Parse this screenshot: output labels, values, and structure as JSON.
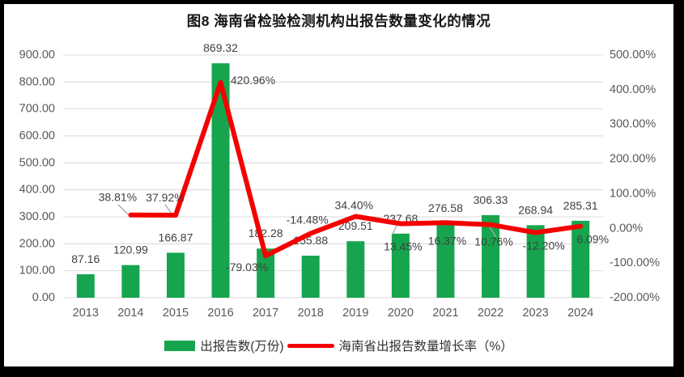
{
  "title": "图8 海南省检验检测机构出报告数量变化的情况",
  "colors": {
    "bar": "#16A54E",
    "line": "#F40000",
    "grid": "#D9D9D9",
    "axis_text": "#595959",
    "data_label_text": "#3F3F3F",
    "leader": "#A6A6A6",
    "frame": "#000000",
    "background": "#FFFFFF"
  },
  "legend": [
    {
      "label": "出报告数(万份)",
      "marker": "bar-swatch",
      "color": "#16A54E"
    },
    {
      "label": "海南省出报告数量增长率（%）",
      "marker": "line-swatch",
      "color": "#F40000"
    }
  ],
  "chart_data": {
    "type": "combo",
    "title": "图8 海南省检验检测机构出报告数量变化的情况",
    "categories": [
      "2013",
      "2014",
      "2015",
      "2016",
      "2017",
      "2018",
      "2019",
      "2020",
      "2021",
      "2022",
      "2023",
      "2024"
    ],
    "series": [
      {
        "name": "出报告数(万份)",
        "type": "bar",
        "axis": "left",
        "color": "#16A54E",
        "values": [
          87.16,
          120.99,
          166.87,
          869.32,
          182.28,
          155.88,
          209.51,
          237.68,
          276.58,
          306.33,
          268.94,
          285.31
        ],
        "data_labels": [
          "87.16",
          "120.99",
          "166.87",
          "869.32",
          "182.28",
          "155.88",
          "209.51",
          "237.68",
          "276.58",
          "306.33",
          "268.94",
          "285.31"
        ]
      },
      {
        "name": "海南省出报告数量增长率（%）",
        "type": "line",
        "axis": "right",
        "color": "#F40000",
        "values": [
          null,
          38.81,
          37.92,
          420.96,
          -79.03,
          -14.48,
          34.4,
          13.45,
          16.37,
          10.76,
          -12.2,
          6.09
        ],
        "data_labels": [
          null,
          "38.81%",
          "37.92%",
          "420.96%",
          "-79.03%",
          "-14.48%",
          "34.40%",
          "13.45%",
          "16.37%",
          "10.76%",
          "-12.20%",
          "6.09%"
        ]
      }
    ],
    "left_axis": {
      "min": 0,
      "max": 900,
      "step": 100,
      "ticks": [
        "0.00",
        "100.00",
        "200.00",
        "300.00",
        "400.00",
        "500.00",
        "600.00",
        "700.00",
        "800.00",
        "900.00"
      ]
    },
    "right_axis": {
      "min": -200,
      "max": 500,
      "step": 100,
      "ticks": [
        "-200.00%",
        "-100.00%",
        "0.00%",
        "100.00%",
        "200.00%",
        "300.00%",
        "400.00%",
        "500.00%"
      ]
    },
    "grid": true,
    "legend_position": "bottom"
  }
}
